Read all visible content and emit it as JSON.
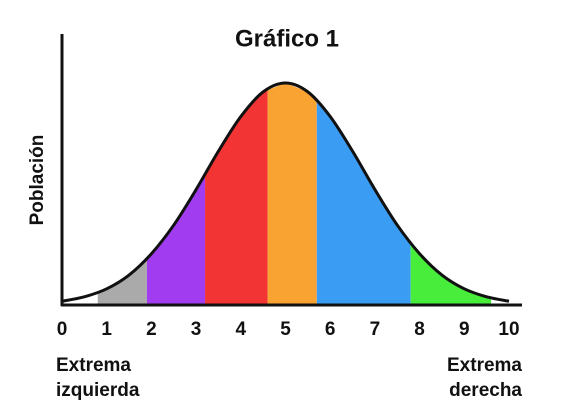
{
  "chart_data": {
    "type": "area",
    "title": "Gráfico 1",
    "y_label": "Población",
    "x": [
      0,
      0.5,
      1,
      1.5,
      2,
      2.5,
      3,
      3.5,
      4,
      4.5,
      5,
      5.5,
      6,
      6.5,
      7,
      7.5,
      8,
      8.5,
      9,
      9.5,
      10
    ],
    "values": [
      1.7,
      3.7,
      7.3,
      13.5,
      23.1,
      36.0,
      52.0,
      69.3,
      84.9,
      96.0,
      100,
      96.0,
      84.9,
      69.3,
      52.0,
      36.0,
      23.1,
      13.5,
      7.3,
      3.7,
      1.7
    ],
    "color": "#111111",
    "bands": [
      {
        "from": 0.8,
        "to": 1.9,
        "color": "#aaaaaa"
      },
      {
        "from": 1.9,
        "to": 3.2,
        "color": "#a23cf0"
      },
      {
        "from": 3.2,
        "to": 4.6,
        "color": "#f23434"
      },
      {
        "from": 4.6,
        "to": 5.7,
        "color": "#f8a332"
      },
      {
        "from": 5.7,
        "to": 7.8,
        "color": "#3a9cf2"
      },
      {
        "from": 7.8,
        "to": 9.6,
        "color": "#48ec3a"
      }
    ],
    "xlim": [
      0,
      10
    ],
    "xticks": [
      0,
      1,
      2,
      3,
      4,
      5,
      6,
      7,
      8,
      9,
      10
    ],
    "ylim": [
      0,
      100
    ],
    "left_label": [
      "Extrema",
      "izquierda"
    ],
    "right_label": [
      "Extrema",
      "derecha"
    ]
  }
}
